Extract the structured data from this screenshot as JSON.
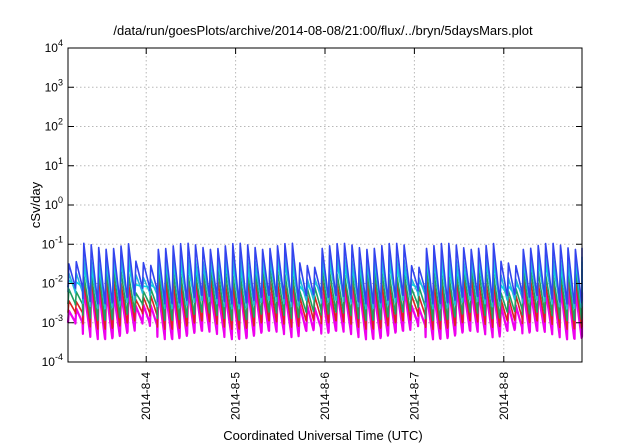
{
  "chart_data": {
    "type": "line",
    "title": "/data/run/goesPlots/archive/2014-08-08/21:00/flux/../bryn/5daysMars.plot",
    "xlabel": "Coordinated Universal Time (UTC)",
    "ylabel": "cSv/day",
    "yscale": "log",
    "ylim": [
      0.0001,
      10000
    ],
    "xlim": [
      "2014-08-03T03:00",
      "2014-08-08T21:00"
    ],
    "grid": true,
    "x_ticks": [
      "2014-8-4",
      "2014-8-5",
      "2014-8-6",
      "2014-8-7",
      "2014-8-8"
    ],
    "y_ticks": [
      {
        "base": "10",
        "exp": "-4"
      },
      {
        "base": "10",
        "exp": "-3"
      },
      {
        "base": "10",
        "exp": "-2"
      },
      {
        "base": "10",
        "exp": "-1"
      },
      {
        "base": "10",
        "exp": "0"
      },
      {
        "base": "10",
        "exp": "1"
      },
      {
        "base": "10",
        "exp": "2"
      },
      {
        "base": "10",
        "exp": "3"
      },
      {
        "base": "10",
        "exp": "4"
      }
    ],
    "orbit_period_hours": 2,
    "series_envelope": [
      {
        "color": "#3344ee",
        "peak": 0.09,
        "trough": 0.004
      },
      {
        "color": "#22b8dd",
        "peak": 0.045,
        "trough": 0.003
      },
      {
        "color": "#00e0e0",
        "peak": 0.03,
        "trough": 0.004
      },
      {
        "color": "#20a060",
        "peak": 0.02,
        "trough": 0.0015
      },
      {
        "color": "#dd2222",
        "peak": 0.012,
        "trough": 0.0009
      },
      {
        "color": "#ee00ee",
        "peak": 0.007,
        "trough": 0.0005
      }
    ],
    "quiet_intervals": [
      [
        "2014-08-03T03:00",
        "2014-08-03T05:00"
      ],
      [
        "2014-08-03T21:00",
        "2014-08-04T01:00"
      ],
      [
        "2014-08-05T16:00",
        "2014-08-05T21:00"
      ],
      [
        "2014-08-06T23:00",
        "2014-08-07T02:00"
      ],
      [
        "2014-08-07T23:00",
        "2014-08-08T04:00"
      ]
    ]
  }
}
